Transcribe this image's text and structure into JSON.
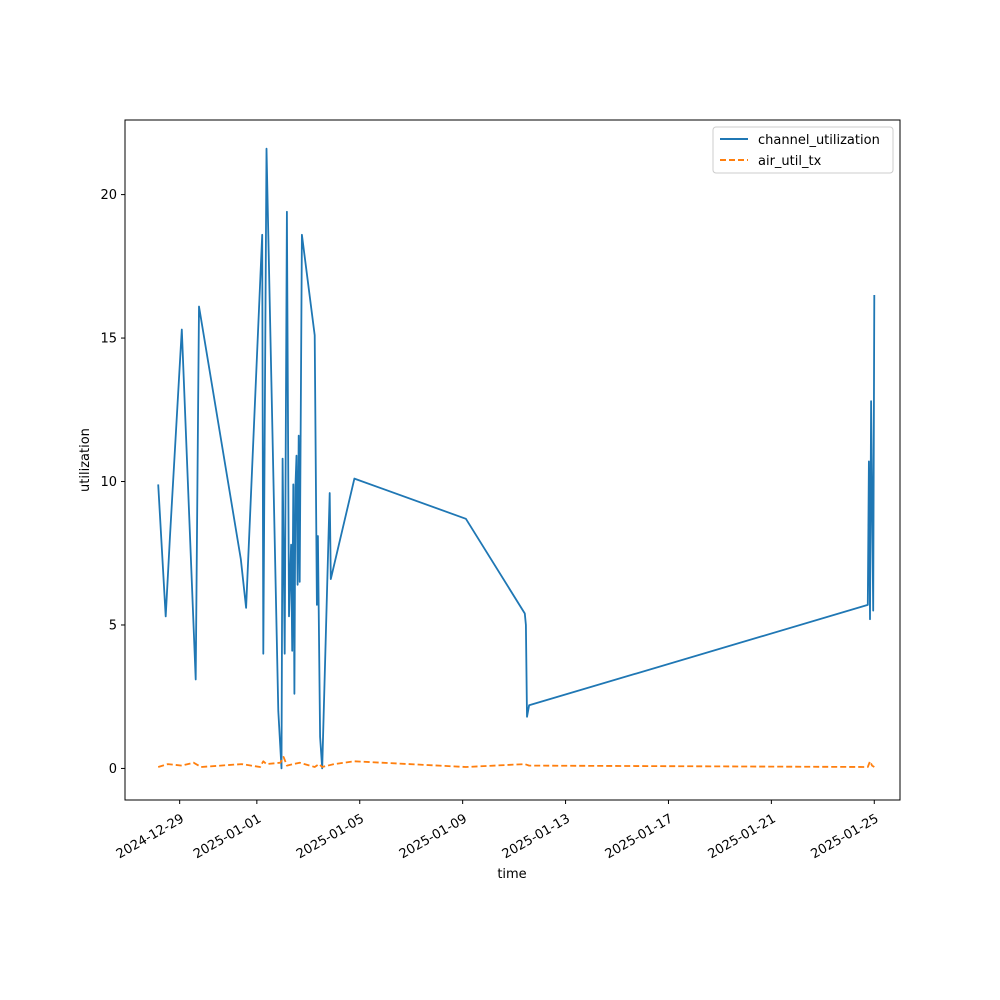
{
  "chart_data": {
    "type": "line",
    "title": "",
    "xlabel": "time",
    "ylabel": "utilization",
    "x_type": "date",
    "xlim": [
      "2024-12-26T21:00",
      "2025-01-26T00:00"
    ],
    "ylim": [
      -1.1,
      22.6
    ],
    "x_ticks": [
      "2024-12-29",
      "2025-01-01",
      "2025-01-05",
      "2025-01-09",
      "2025-01-13",
      "2025-01-17",
      "2025-01-21",
      "2025-01-25"
    ],
    "y_ticks": [
      0,
      5,
      10,
      15,
      20
    ],
    "grid": false,
    "legend_position": "top-right",
    "series": [
      {
        "name": "channel_utilization",
        "color": "#1f77b4",
        "dash": "solid",
        "points": [
          [
            "2024-12-28T04:00",
            9.9
          ],
          [
            "2024-12-28T11:00",
            5.3
          ],
          [
            "2024-12-28T15:00",
            8.1
          ],
          [
            "2024-12-29T02:00",
            15.3
          ],
          [
            "2024-12-29T15:00",
            3.1
          ],
          [
            "2024-12-29T18:00",
            16.1
          ],
          [
            "2024-12-31T09:00",
            7.3
          ],
          [
            "2024-12-31T14:00",
            5.6
          ],
          [
            "2025-01-01T05:00",
            18.6
          ],
          [
            "2025-01-01T06:00",
            4.0
          ],
          [
            "2025-01-01T09:00",
            21.6
          ],
          [
            "2025-01-01T20:00",
            2.0
          ],
          [
            "2025-01-01T23:00",
            0.0
          ],
          [
            "2025-01-02T00:00",
            10.8
          ],
          [
            "2025-01-02T02:00",
            4.0
          ],
          [
            "2025-01-02T04:00",
            19.4
          ],
          [
            "2025-01-02T06:00",
            5.3
          ],
          [
            "2025-01-02T08:00",
            7.8
          ],
          [
            "2025-01-02T09:00",
            4.1
          ],
          [
            "2025-01-02T10:00",
            9.9
          ],
          [
            "2025-01-02T11:00",
            2.6
          ],
          [
            "2025-01-02T12:00",
            9.8
          ],
          [
            "2025-01-02T13:00",
            10.9
          ],
          [
            "2025-01-02T14:00",
            6.4
          ],
          [
            "2025-01-02T15:00",
            11.6
          ],
          [
            "2025-01-02T16:00",
            6.5
          ],
          [
            "2025-01-02T18:00",
            18.6
          ],
          [
            "2025-01-03T06:00",
            15.1
          ],
          [
            "2025-01-03T08:00",
            5.7
          ],
          [
            "2025-01-03T09:00",
            8.1
          ],
          [
            "2025-01-03T11:00",
            1.1
          ],
          [
            "2025-01-03T13:00",
            0.0
          ],
          [
            "2025-01-03T20:00",
            9.6
          ],
          [
            "2025-01-03T21:00",
            6.6
          ],
          [
            "2025-01-04T19:00",
            10.1
          ],
          [
            "2025-01-09T03:00",
            8.7
          ],
          [
            "2025-01-11T10:00",
            5.4
          ],
          [
            "2025-01-11T11:00",
            5.0
          ],
          [
            "2025-01-11T12:00",
            1.8
          ],
          [
            "2025-01-11T14:00",
            2.2
          ],
          [
            "2025-01-24T18:00",
            5.7
          ],
          [
            "2025-01-24T19:00",
            10.7
          ],
          [
            "2025-01-24T20:00",
            5.2
          ],
          [
            "2025-01-24T21:00",
            12.8
          ],
          [
            "2025-01-24T23:00",
            5.5
          ],
          [
            "2025-01-25T00:00",
            16.5
          ]
        ]
      },
      {
        "name": "air_util_tx",
        "color": "#ff7f0e",
        "dash": "dashed",
        "points": [
          [
            "2024-12-28T04:00",
            0.05
          ],
          [
            "2024-12-28T13:00",
            0.15
          ],
          [
            "2024-12-29T02:00",
            0.1
          ],
          [
            "2024-12-29T13:00",
            0.2
          ],
          [
            "2024-12-29T20:00",
            0.05
          ],
          [
            "2024-12-31T10:00",
            0.15
          ],
          [
            "2025-01-01T03:00",
            0.05
          ],
          [
            "2025-01-01T06:00",
            0.25
          ],
          [
            "2025-01-01T09:00",
            0.15
          ],
          [
            "2025-01-01T22:00",
            0.2
          ],
          [
            "2025-01-02T01:00",
            0.4
          ],
          [
            "2025-01-02T04:00",
            0.1
          ],
          [
            "2025-01-02T10:00",
            0.15
          ],
          [
            "2025-01-02T16:00",
            0.2
          ],
          [
            "2025-01-03T06:00",
            0.05
          ],
          [
            "2025-01-03T10:00",
            0.15
          ],
          [
            "2025-01-03T13:00",
            0.05
          ],
          [
            "2025-01-04T00:00",
            0.15
          ],
          [
            "2025-01-04T19:00",
            0.25
          ],
          [
            "2025-01-09T03:00",
            0.05
          ],
          [
            "2025-01-11T10:00",
            0.15
          ],
          [
            "2025-01-11T14:00",
            0.1
          ],
          [
            "2025-01-24T18:00",
            0.05
          ],
          [
            "2025-01-24T20:00",
            0.25
          ],
          [
            "2025-01-24T22:00",
            0.1
          ],
          [
            "2025-01-25T00:00",
            0.05
          ]
        ]
      }
    ]
  }
}
